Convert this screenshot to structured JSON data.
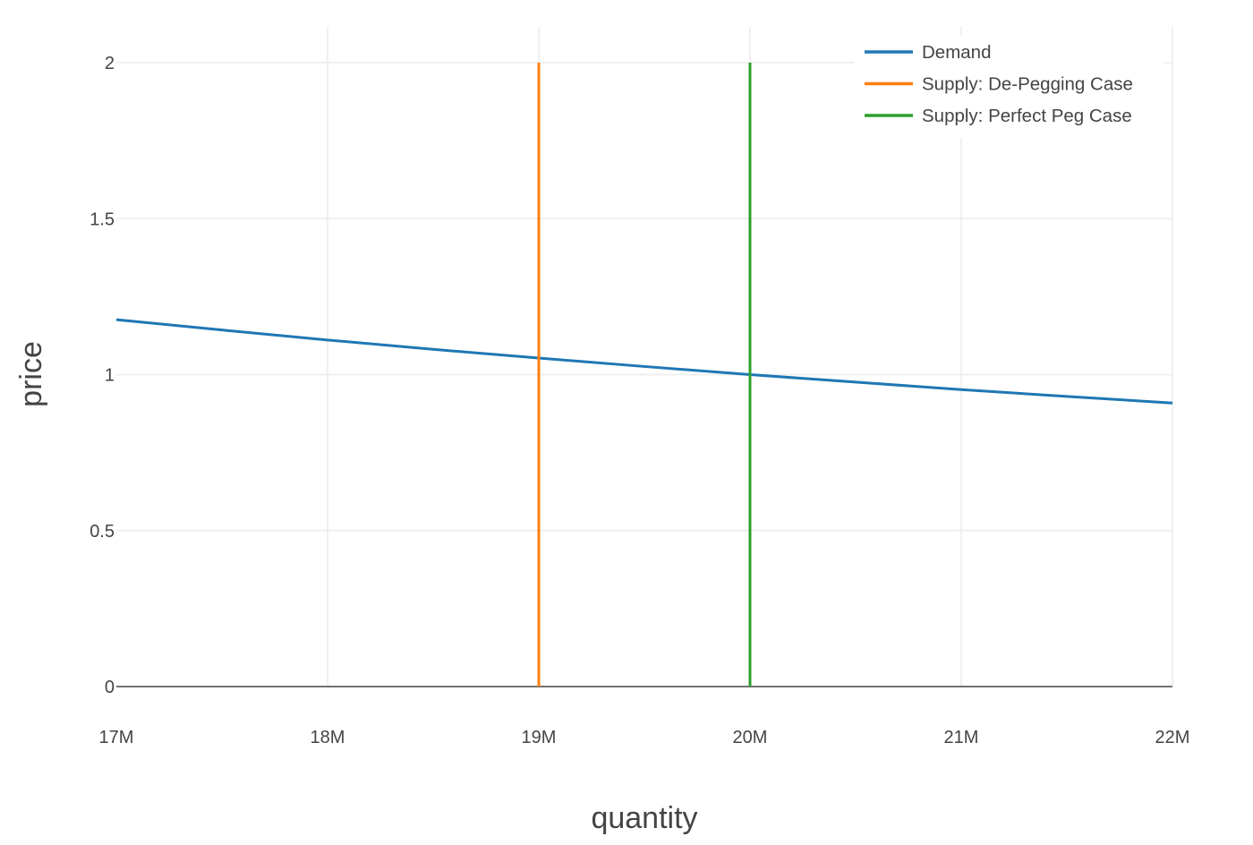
{
  "chart_data": {
    "type": "line",
    "title": "",
    "xlabel": "quantity",
    "ylabel": "price",
    "xlim": [
      17000000,
      22000000
    ],
    "ylim": [
      0,
      2
    ],
    "x_ticks": [
      17000000,
      18000000,
      19000000,
      20000000,
      21000000,
      22000000
    ],
    "x_tick_labels": [
      "17M",
      "18M",
      "19M",
      "20M",
      "21M",
      "22M"
    ],
    "y_ticks": [
      0,
      0.5,
      1,
      1.5,
      2
    ],
    "y_tick_labels": [
      "0",
      "0.5",
      "1",
      "1.5",
      "2"
    ],
    "grid": true,
    "legend_position": "top-right",
    "series": [
      {
        "name": "Demand",
        "color": "#1f77b4",
        "x": [
          17000000,
          17500000,
          18000000,
          18500000,
          19000000,
          19500000,
          20000000,
          20500000,
          21000000,
          21500000,
          22000000
        ],
        "y": [
          1.176,
          1.143,
          1.111,
          1.081,
          1.053,
          1.026,
          1.0,
          0.976,
          0.952,
          0.93,
          0.909
        ]
      },
      {
        "name": "Supply: De-Pegging Case",
        "color": "#ff7f0e",
        "x": [
          19000000,
          19000000
        ],
        "y": [
          0,
          2
        ]
      },
      {
        "name": "Supply: Perfect Peg Case",
        "color": "#2ca02c",
        "x": [
          20000000,
          20000000
        ],
        "y": [
          0,
          2
        ]
      }
    ]
  }
}
